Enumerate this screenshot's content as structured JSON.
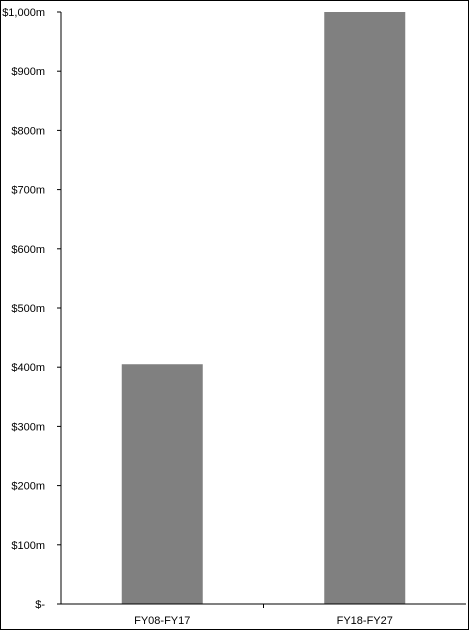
{
  "chart_data": {
    "type": "bar",
    "title": "",
    "xlabel": "",
    "ylabel": "",
    "categories": [
      "FY08-FY17",
      "FY18-FY27"
    ],
    "values": [
      405,
      1000
    ],
    "ylim": [
      0,
      1000
    ],
    "yticks": [
      0,
      100,
      200,
      300,
      400,
      500,
      600,
      700,
      800,
      900,
      1000
    ],
    "ytick_labels": [
      "$-",
      "$100m",
      "$200m",
      "$300m",
      "$400m",
      "$500m",
      "$600m",
      "$700m",
      "$800m",
      "$900m",
      "$1,000m"
    ],
    "grid": false,
    "legend": "none",
    "bar_color": "#808080"
  }
}
